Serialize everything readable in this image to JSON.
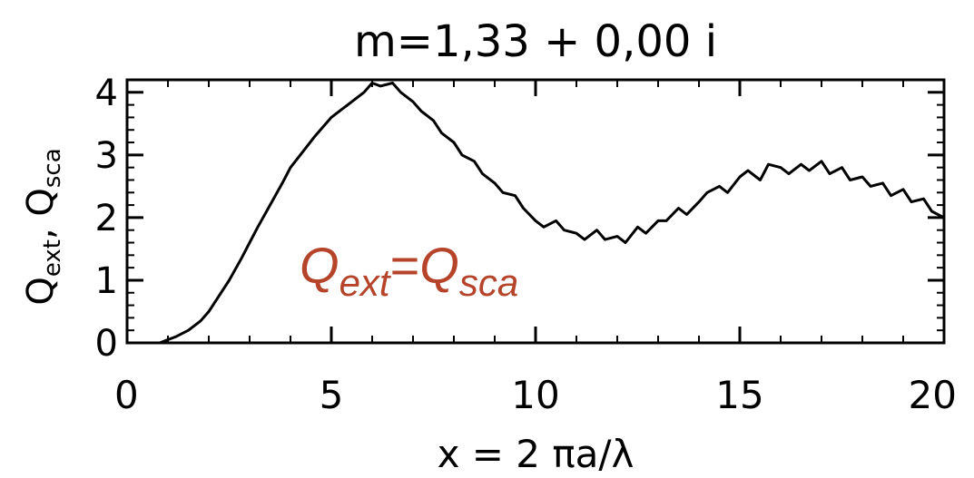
{
  "chart_data": {
    "type": "line",
    "title": "m=1,33 + 0,00 i",
    "xlabel": "x = 2 πa/λ",
    "ylabel_main": "Q",
    "ylabel_sub1": "ext",
    "ylabel_sep": ", Q",
    "ylabel_sub2": "sca",
    "xlim": [
      0,
      20
    ],
    "ylim": [
      0,
      4.2
    ],
    "xticks": [
      0,
      5,
      10,
      15,
      20
    ],
    "xtick_labels": [
      "0",
      "5",
      "10",
      "15",
      "20"
    ],
    "yticks": [
      0,
      1,
      2,
      3,
      4
    ],
    "ytick_labels": [
      "0",
      "1",
      "2",
      "3",
      "4"
    ],
    "grid": false,
    "line_color": "#000000",
    "annotation": {
      "main1": "Q",
      "sub1": "ext",
      "eq": "=",
      "main2": "Q",
      "sub2": "sca",
      "color": "#b5442a"
    },
    "series": [
      {
        "x": [
          0.4,
          0.8,
          1.0,
          1.2,
          1.5,
          1.8,
          2.0,
          2.2,
          2.5,
          2.8,
          3.0,
          3.2,
          3.5,
          3.8,
          4.0,
          4.3,
          4.6,
          5.0,
          5.3,
          5.5,
          5.8,
          6.0,
          6.2,
          6.5,
          6.7,
          7.0,
          7.2,
          7.5,
          7.7,
          8.0,
          8.2,
          8.5,
          8.7,
          9.0,
          9.2,
          9.5,
          9.7,
          10.0,
          10.2,
          10.5,
          10.7,
          11.0,
          11.2,
          11.5,
          11.7,
          12.0,
          12.2,
          12.5,
          12.7,
          13.0,
          13.2,
          13.5,
          13.7,
          14.0,
          14.2,
          14.5,
          14.7,
          15.0,
          15.2,
          15.5,
          15.7,
          16.0,
          16.2,
          16.5,
          16.7,
          17.0,
          17.2,
          17.5,
          17.7,
          18.0,
          18.2,
          18.5,
          18.7,
          19.0,
          19.2,
          19.5,
          19.7,
          20.0
        ],
        "y": [
          0.0,
          0.0,
          0.05,
          0.1,
          0.2,
          0.35,
          0.5,
          0.7,
          1.0,
          1.35,
          1.6,
          1.85,
          2.2,
          2.55,
          2.8,
          3.05,
          3.3,
          3.6,
          3.75,
          3.85,
          4.0,
          4.15,
          4.1,
          4.15,
          4.0,
          3.85,
          3.7,
          3.55,
          3.35,
          3.2,
          3.0,
          2.9,
          2.7,
          2.55,
          2.4,
          2.35,
          2.15,
          1.95,
          1.85,
          1.95,
          1.8,
          1.75,
          1.65,
          1.8,
          1.65,
          1.7,
          1.6,
          1.85,
          1.75,
          1.95,
          1.95,
          2.15,
          2.05,
          2.25,
          2.4,
          2.5,
          2.4,
          2.65,
          2.75,
          2.6,
          2.85,
          2.8,
          2.7,
          2.85,
          2.75,
          2.9,
          2.7,
          2.8,
          2.6,
          2.65,
          2.5,
          2.55,
          2.35,
          2.45,
          2.25,
          2.3,
          2.1,
          2.0
        ]
      }
    ]
  }
}
